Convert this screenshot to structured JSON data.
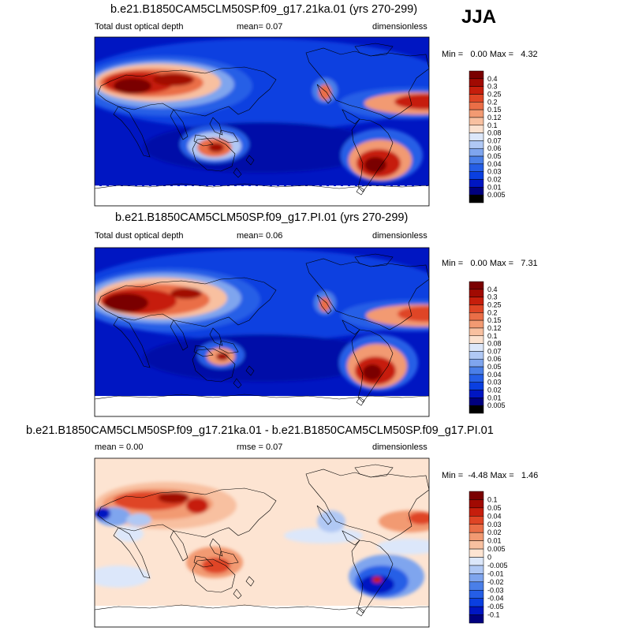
{
  "season": "JJA",
  "colors": {
    "p1_levels": [
      "#00007f",
      "#0016c2",
      "#0a3fe0",
      "#255ee6",
      "#4a7fe8",
      "#7fa5ee",
      "#b0c8f4",
      "#dce7fa",
      "#fbe1cf",
      "#f8c0a0",
      "#f29a72",
      "#ea6e47",
      "#df4525",
      "#c61e0c",
      "#a10a02",
      "#7a0000"
    ],
    "p3_levels": [
      "#00007f",
      "#0016c2",
      "#0a3fe0",
      "#255ee6",
      "#4a7fe8",
      "#7fa5ee",
      "#b0c8f4",
      "#dce7fa",
      "#fde4d2",
      "#f8c0a0",
      "#f29a72",
      "#ea6e47",
      "#df4525",
      "#c61e0c",
      "#a10a02",
      "#7a0000"
    ],
    "land_line": "#000000"
  },
  "panels": [
    {
      "title": "b.e21.B1850CAM5CLM50SP.f09_g17.21ka.01 (yrs 270-299)",
      "left_label": "Total dust optical depth",
      "center_label": "mean=   0.07",
      "right_label": "dimensionless",
      "minmax": "Min =   0.00 Max =   4.32"
    },
    {
      "title": "b.e21.B1850CAM5CLM50SP.f09_g17.PI.01 (yrs 270-299)",
      "left_label": "Total dust optical depth",
      "center_label": "mean=   0.06",
      "right_label": "dimensionless",
      "minmax": "Min =   0.00 Max =   7.31"
    },
    {
      "title": "b.e21.B1850CAM5CLM50SP.f09_g17.21ka.01 - b.e21.B1850CAM5CLM50SP.f09_g17.PI.01",
      "left_label": "mean =   0.00",
      "center_label": "rmse =   0.07",
      "right_label": "dimensionless",
      "minmax": "Min =  -4.48 Max =   1.46"
    }
  ],
  "chart_data": [
    {
      "type": "heatmap",
      "title": "b.e21.B1850CAM5CLM50SP.f09_g17.21ka.01 (yrs 270-299)",
      "variable": "Total dust optical depth",
      "units": "dimensionless",
      "mean": 0.07,
      "min": 0.0,
      "max": 4.32,
      "colorbar_levels": [
        "0.4",
        "0.3",
        "0.25",
        "0.2",
        "0.15",
        "0.12",
        "0.1",
        "0.08",
        "0.07",
        "0.06",
        "0.05",
        "0.04",
        "0.03",
        "0.02",
        "0.01",
        "0.005"
      ]
    },
    {
      "type": "heatmap",
      "title": "b.e21.B1850CAM5CLM50SP.f09_g17.PI.01 (yrs 270-299)",
      "variable": "Total dust optical depth",
      "units": "dimensionless",
      "mean": 0.06,
      "min": 0.0,
      "max": 7.31,
      "colorbar_levels": [
        "0.4",
        "0.3",
        "0.25",
        "0.2",
        "0.15",
        "0.12",
        "0.1",
        "0.08",
        "0.07",
        "0.06",
        "0.05",
        "0.04",
        "0.03",
        "0.02",
        "0.01",
        "0.005"
      ]
    },
    {
      "type": "heatmap",
      "title": "b.e21.B1850CAM5CLM50SP.f09_g17.21ka.01 - b.e21.B1850CAM5CLM50SP.f09_g17.PI.01",
      "units": "dimensionless",
      "mean": 0.0,
      "rmse": 0.07,
      "min": -4.48,
      "max": 1.46,
      "colorbar_levels": [
        "0.1",
        "0.05",
        "0.04",
        "0.03",
        "0.02",
        "0.01",
        "0.005",
        "0",
        "-0.005",
        "-0.01",
        "-0.02",
        "-0.03",
        "-0.04",
        "-0.05",
        "-0.1"
      ]
    }
  ]
}
